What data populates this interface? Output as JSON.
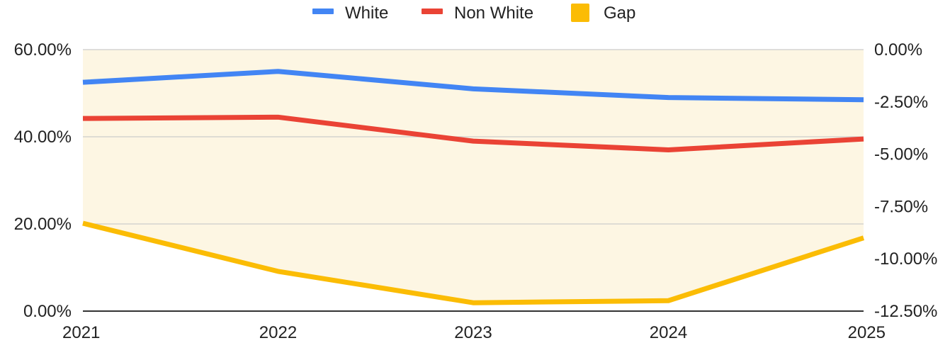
{
  "chart_data": {
    "type": "line",
    "x": [
      "2021",
      "2022",
      "2023",
      "2024",
      "2025"
    ],
    "series": [
      {
        "name": "White",
        "axis": "left",
        "style": "line",
        "color": "#4285f4",
        "values": [
          52.5,
          55.0,
          51.0,
          49.0,
          48.5
        ]
      },
      {
        "name": "Non White",
        "axis": "left",
        "style": "line",
        "color": "#ea4335",
        "values": [
          44.2,
          44.5,
          39.0,
          37.0,
          39.5
        ]
      },
      {
        "name": "Gap",
        "axis": "right",
        "style": "area",
        "color": "#fbbc04",
        "fill": "#fdf6e3",
        "values": [
          -8.3,
          -10.6,
          -12.1,
          -12.0,
          -9.0
        ]
      }
    ],
    "y_left": {
      "min": 0,
      "max": 60,
      "ticks": [
        "60.00%",
        "40.00%",
        "20.00%",
        "0.00%"
      ],
      "tick_values": [
        60,
        40,
        20,
        0
      ]
    },
    "y_right": {
      "min": -12.5,
      "max": 0,
      "ticks": [
        "0.00%",
        "-2.50%",
        "-5.00%",
        "-7.50%",
        "-10.00%",
        "-12.50%"
      ],
      "tick_values": [
        0,
        -2.5,
        -5,
        -7.5,
        -10,
        -12.5
      ]
    },
    "grid": true,
    "legend_position": "top-center"
  }
}
